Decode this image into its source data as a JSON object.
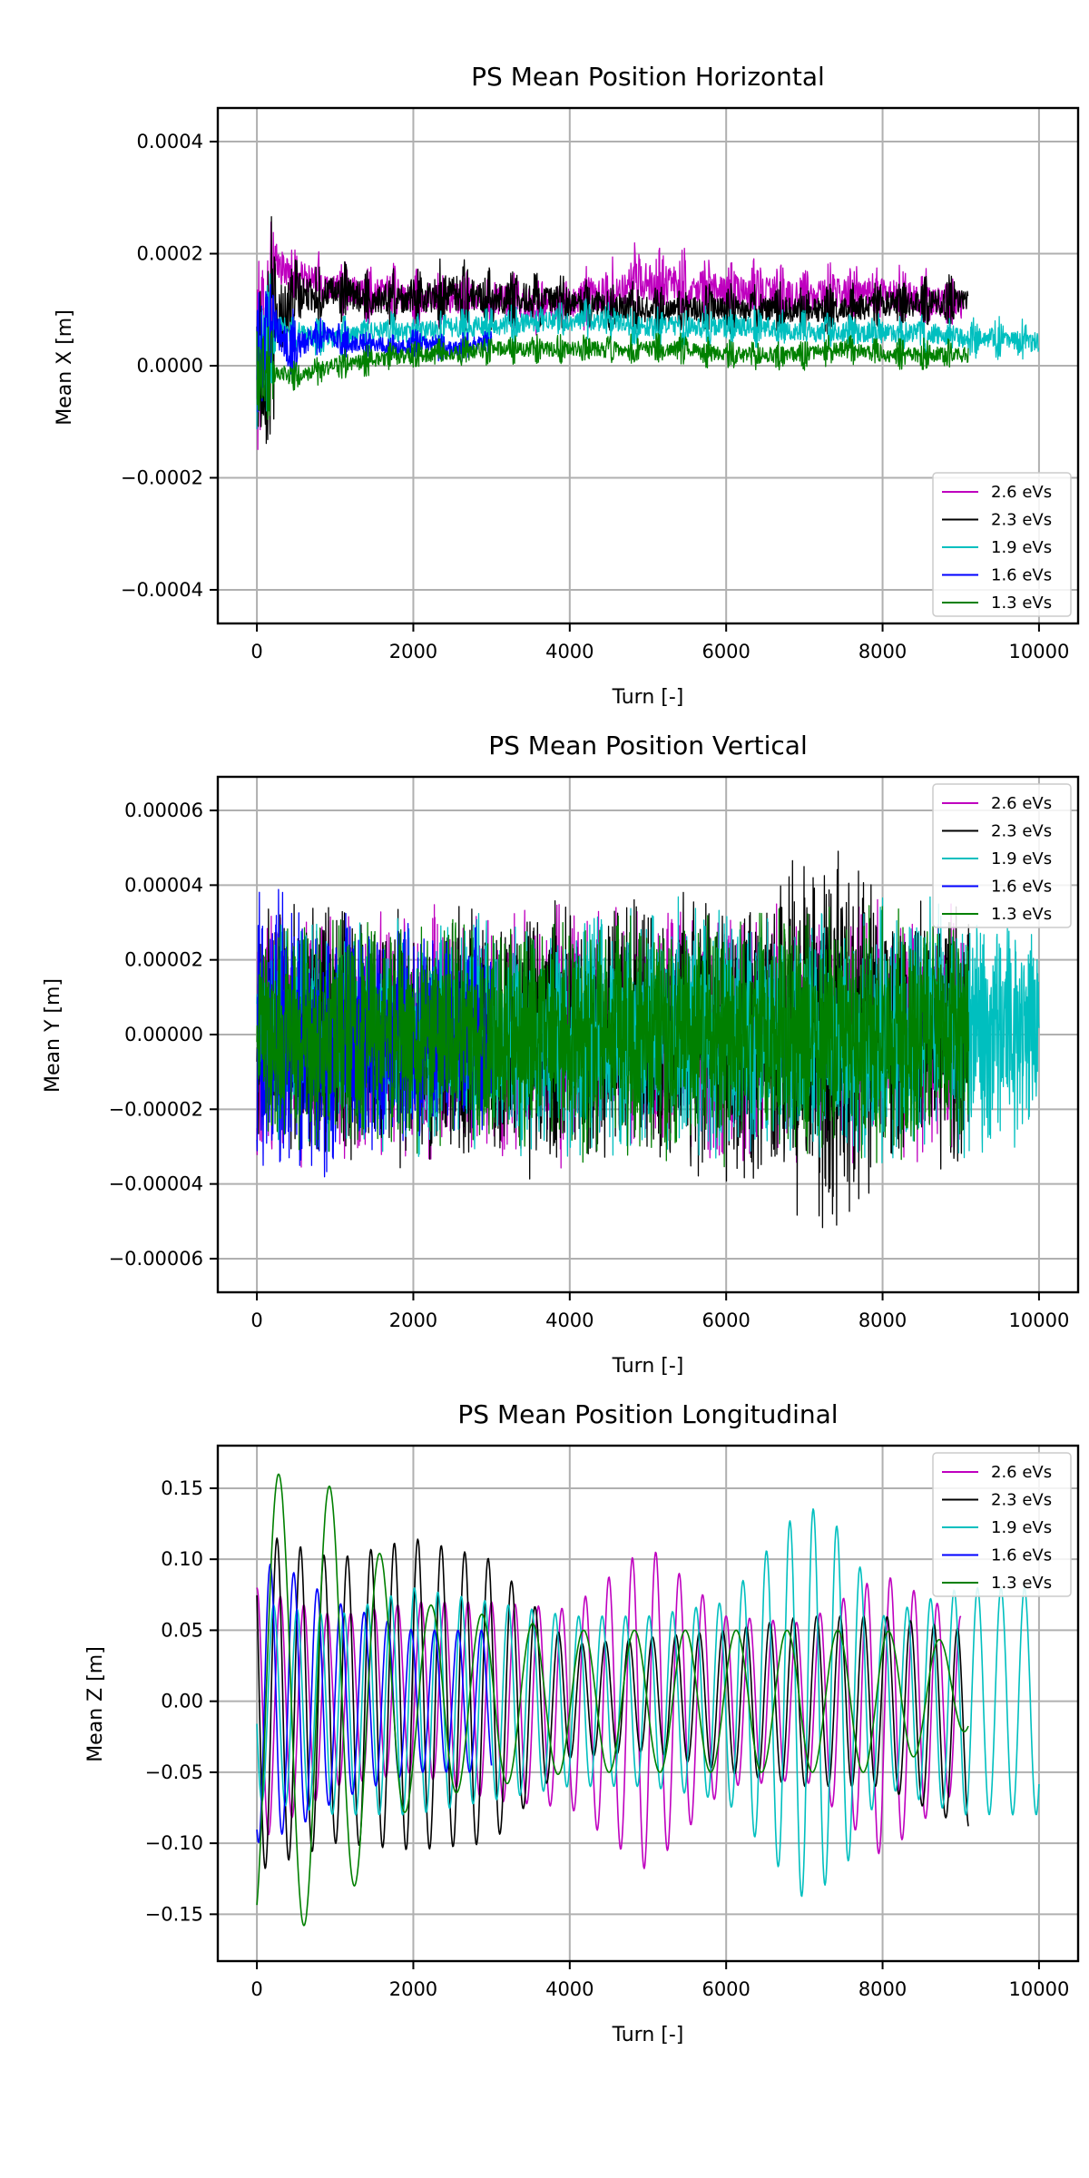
{
  "figure": {
    "legend_entries": [
      "2.6 eVs",
      "2.3 eVs",
      "1.9 eVs",
      "1.6 eVs",
      "1.3 eVs"
    ]
  },
  "chart_data": [
    {
      "type": "line",
      "title": "PS Mean Position Horizontal",
      "xlabel": "Turn [-]",
      "ylabel": "Mean X [m]",
      "xlim": [
        -500,
        10500
      ],
      "ylim": [
        -0.00046,
        0.00046
      ],
      "xticks": [
        0,
        2000,
        4000,
        6000,
        8000,
        10000
      ],
      "xtick_labels": [
        "0",
        "2000",
        "4000",
        "6000",
        "8000",
        "10000"
      ],
      "yticks": [
        0.0004,
        0.0002,
        0.0,
        -0.0002,
        -0.0004
      ],
      "ytick_labels": [
        "0.0004",
        "0.0002",
        "0.0000",
        "−0.0002",
        "−0.0004"
      ],
      "grid": true,
      "legend_position": "lower right",
      "series": [
        {
          "name": "2.6 eVs",
          "color": "#bf00bf",
          "x": [
            0,
            250,
            500,
            750,
            1000,
            1500,
            2000,
            2500,
            3000,
            3500,
            4000,
            4500,
            5000,
            5500,
            6000,
            6500,
            7000,
            7500,
            8000,
            8500,
            9050
          ],
          "y": [
            0.0,
            0.00018,
            0.00016,
            0.00015,
            0.00014,
            0.00013,
            0.00012,
            0.00012,
            0.00012,
            0.00011,
            0.00011,
            0.00013,
            0.00015,
            0.00014,
            0.00013,
            0.00013,
            0.00012,
            0.00013,
            0.00013,
            0.00012,
            0.00011
          ],
          "amplitude": [
            0.00041,
            7e-05,
            6e-05,
            6e-05,
            5e-05,
            6e-05,
            6e-05,
            6e-05,
            6e-05,
            6e-05,
            6e-05,
            7e-05,
            8e-05,
            7e-05,
            7e-05,
            7e-05,
            6e-05,
            6e-05,
            6e-05,
            6e-05,
            6e-05
          ]
        },
        {
          "name": "2.3 eVs",
          "color": "#000000",
          "x": [
            0,
            250,
            500,
            750,
            1000,
            1500,
            2000,
            2500,
            3000,
            3500,
            4000,
            4500,
            5000,
            5500,
            6000,
            6500,
            7000,
            7500,
            8000,
            8500,
            9100
          ],
          "y": [
            0.0,
            8e-05,
            0.00012,
            0.00013,
            0.00013,
            0.00012,
            0.00012,
            0.00013,
            0.00012,
            0.00012,
            0.00011,
            0.00011,
            0.0001,
            0.0001,
            0.0001,
            0.0001,
            0.0001,
            0.0001,
            0.00011,
            0.00011,
            0.00012
          ],
          "amplitude": [
            0.0004,
            0.00016,
            8e-05,
            6e-05,
            6e-05,
            6e-05,
            6e-05,
            7e-05,
            6e-05,
            6e-05,
            5e-05,
            5e-05,
            5e-05,
            5e-05,
            5e-05,
            5e-05,
            5e-05,
            5e-05,
            5e-05,
            5e-05,
            5e-05
          ]
        },
        {
          "name": "1.9 eVs",
          "color": "#00bfbf",
          "x": [
            0,
            250,
            500,
            750,
            1000,
            1500,
            2000,
            2500,
            3000,
            3500,
            4000,
            4500,
            5000,
            5500,
            6000,
            6500,
            7000,
            7500,
            8000,
            8500,
            9000,
            9500,
            10000
          ],
          "y": [
            0.0,
            7e-05,
            6e-05,
            5e-05,
            5e-05,
            6e-05,
            6e-05,
            7e-05,
            7e-05,
            8e-05,
            8e-05,
            8e-05,
            7e-05,
            7e-05,
            7e-05,
            7e-05,
            6e-05,
            6e-05,
            6e-05,
            6e-05,
            5e-05,
            5e-05,
            4e-05
          ],
          "amplitude": [
            0.00028,
            5e-05,
            4e-05,
            4e-05,
            4e-05,
            4e-05,
            4e-05,
            4e-05,
            4e-05,
            4e-05,
            4e-05,
            4e-05,
            4e-05,
            4e-05,
            4e-05,
            4e-05,
            4e-05,
            4e-05,
            4e-05,
            4e-05,
            4e-05,
            4e-05,
            4e-05
          ]
        },
        {
          "name": "1.6 eVs",
          "color": "#0000ff",
          "x": [
            0,
            200,
            400,
            600,
            800,
            1000,
            1200,
            1500,
            1800,
            2000,
            2200,
            2500,
            2800,
            3000
          ],
          "y": [
            0.0,
            8e-05,
            3e-05,
            4e-05,
            6e-05,
            5e-05,
            4e-05,
            4e-05,
            3e-05,
            4e-05,
            4e-05,
            3e-05,
            4e-05,
            4e-05
          ],
          "amplitude": [
            0.0003,
            6e-05,
            8e-05,
            5e-05,
            4e-05,
            4e-05,
            4e-05,
            3e-05,
            3e-05,
            3e-05,
            3e-05,
            3e-05,
            3e-05,
            3e-05
          ]
        },
        {
          "name": "1.3 eVs",
          "color": "#008000",
          "x": [
            0,
            250,
            500,
            750,
            1000,
            1500,
            2000,
            2500,
            3000,
            3500,
            4000,
            4500,
            5000,
            5500,
            6000,
            6500,
            7000,
            7500,
            8000,
            8500,
            9100
          ],
          "y": [
            0.0,
            -1e-05,
            -2e-05,
            -1e-05,
            0.0,
            1e-05,
            2e-05,
            2e-05,
            3e-05,
            3e-05,
            3e-05,
            3e-05,
            3e-05,
            3e-05,
            2e-05,
            2e-05,
            2e-05,
            3e-05,
            2e-05,
            2e-05,
            2e-05
          ],
          "amplitude": [
            0.00026,
            3e-05,
            3e-05,
            3e-05,
            3e-05,
            3e-05,
            3e-05,
            3e-05,
            3e-05,
            3e-05,
            3e-05,
            3e-05,
            3e-05,
            3e-05,
            3e-05,
            3e-05,
            3e-05,
            3e-05,
            3e-05,
            3e-05,
            3e-05
          ]
        }
      ]
    },
    {
      "type": "line",
      "title": "PS Mean Position Vertical",
      "xlabel": "Turn [-]",
      "ylabel": "Mean Y [m]",
      "xlim": [
        -500,
        10500
      ],
      "ylim": [
        -6.9e-05,
        6.9e-05
      ],
      "xticks": [
        0,
        2000,
        4000,
        6000,
        8000,
        10000
      ],
      "xtick_labels": [
        "0",
        "2000",
        "4000",
        "6000",
        "8000",
        "10000"
      ],
      "yticks": [
        6e-05,
        4e-05,
        2e-05,
        0.0,
        -2e-05,
        -4e-05,
        -6e-05
      ],
      "ytick_labels": [
        "0.00006",
        "0.00004",
        "0.00002",
        "0.00000",
        "−0.00002",
        "−0.00004",
        "−0.00006"
      ],
      "grid": true,
      "legend_position": "upper right",
      "series": [
        {
          "name": "2.6 eVs",
          "color": "#bf00bf",
          "x": [
            0,
            2000,
            4000,
            6000,
            8000,
            9050
          ],
          "y": [
            0,
            0,
            0,
            0,
            0,
            0
          ],
          "amplitude": [
            3.8e-05,
            3.6e-05,
            3.7e-05,
            3.7e-05,
            3.7e-05,
            3.6e-05
          ]
        },
        {
          "name": "2.3 eVs",
          "color": "#000000",
          "x": [
            0,
            2000,
            4000,
            6000,
            7500,
            8000,
            9100
          ],
          "y": [
            0,
            0,
            0,
            0,
            0,
            0,
            0
          ],
          "amplitude": [
            3.8e-05,
            3.8e-05,
            4e-05,
            4e-05,
            6e-05,
            4e-05,
            3.8e-05
          ]
        },
        {
          "name": "1.9 eVs",
          "color": "#00bfbf",
          "x": [
            0,
            2000,
            4000,
            6000,
            8000,
            10000
          ],
          "y": [
            0,
            0,
            0,
            0,
            0,
            0
          ],
          "amplitude": [
            3.2e-05,
            3.4e-05,
            3.6e-05,
            3.8e-05,
            4e-05,
            3.2e-05
          ]
        },
        {
          "name": "1.6 eVs",
          "color": "#0000ff",
          "x": [
            0,
            500,
            1000,
            2000,
            3000
          ],
          "y": [
            0,
            0,
            0,
            0,
            0
          ],
          "amplitude": [
            5e-05,
            4.2e-05,
            3.8e-05,
            3.2e-05,
            3e-05
          ]
        },
        {
          "name": "1.3 eVs",
          "color": "#008000",
          "x": [
            0,
            2000,
            4000,
            6000,
            8000,
            9100
          ],
          "y": [
            0,
            0,
            0,
            0,
            0,
            0
          ],
          "amplitude": [
            3.2e-05,
            3.4e-05,
            3.6e-05,
            3.6e-05,
            3.6e-05,
            3.4e-05
          ]
        }
      ]
    },
    {
      "type": "line",
      "title": "PS Mean Position Longitudinal",
      "xlabel": "Turn [-]",
      "ylabel": "Mean Z [m]",
      "xlim": [
        -500,
        10500
      ],
      "ylim": [
        -0.183,
        0.18
      ],
      "xticks": [
        0,
        2000,
        4000,
        6000,
        8000,
        10000
      ],
      "xtick_labels": [
        "0",
        "2000",
        "4000",
        "6000",
        "8000",
        "10000"
      ],
      "yticks": [
        0.15,
        0.1,
        0.05,
        0.0,
        -0.05,
        -0.1,
        -0.15
      ],
      "ytick_labels": [
        "0.15",
        "0.10",
        "0.05",
        "0.00",
        "−0.05",
        "−0.10",
        "−0.15"
      ],
      "grid": true,
      "legend_position": "upper right",
      "series": [
        {
          "name": "2.6 eVs",
          "color": "#bf00bf",
          "period": 300,
          "x": [
            0,
            1000,
            2000,
            3000,
            4000,
            5000,
            6000,
            7000,
            8000,
            9000
          ],
          "y": [
            -0.01,
            0,
            0.01,
            0,
            -0.005,
            -0.005,
            0,
            0,
            -0.01,
            0
          ],
          "amplitude": [
            0.09,
            0.06,
            0.06,
            0.07,
            0.07,
            0.115,
            0.06,
            0.055,
            0.1,
            0.06
          ]
        },
        {
          "name": "2.3 eVs",
          "color": "#000000",
          "period": 300,
          "x": [
            0,
            1000,
            2000,
            3000,
            4000,
            5000,
            6000,
            7000,
            8000,
            9100
          ],
          "y": [
            0,
            0,
            0.005,
            0,
            0,
            0.005,
            0,
            0,
            0,
            -0.02
          ],
          "amplitude": [
            0.12,
            0.1,
            0.11,
            0.1,
            0.04,
            0.04,
            0.05,
            0.06,
            0.06,
            0.07
          ]
        },
        {
          "name": "1.9 eVs",
          "color": "#00bfbf",
          "period": 300,
          "x": [
            0,
            1000,
            2000,
            3000,
            4000,
            5000,
            6000,
            7000,
            7500,
            8000,
            9000,
            10000
          ],
          "y": [
            0,
            -0.01,
            0,
            0,
            0,
            0,
            0,
            0,
            0,
            0,
            0,
            0
          ],
          "amplitude": [
            0.07,
            0.07,
            0.08,
            0.07,
            0.06,
            0.06,
            0.07,
            0.14,
            0.12,
            0.06,
            0.08,
            0.08
          ]
        },
        {
          "name": "1.6 eVs",
          "color": "#0000ff",
          "period": 300,
          "x": [
            0,
            500,
            1000,
            2000,
            3000
          ],
          "y": [
            0,
            0,
            0,
            0,
            0
          ],
          "amplitude": [
            0.1,
            0.09,
            0.07,
            0.05,
            0.05
          ]
        },
        {
          "name": "1.3 eVs",
          "color": "#008000",
          "period": 650,
          "x": [
            0,
            500,
            1000,
            1500,
            2000,
            3000,
            4000,
            5000,
            6000,
            7000,
            8000,
            9100
          ],
          "y": [
            0,
            0,
            0,
            0,
            0,
            0,
            0,
            0,
            0,
            0,
            0,
            0.01
          ],
          "amplitude": [
            0.16,
            0.16,
            0.15,
            0.11,
            0.07,
            0.06,
            0.05,
            0.05,
            0.05,
            0.05,
            0.05,
            0.03
          ]
        }
      ]
    }
  ]
}
